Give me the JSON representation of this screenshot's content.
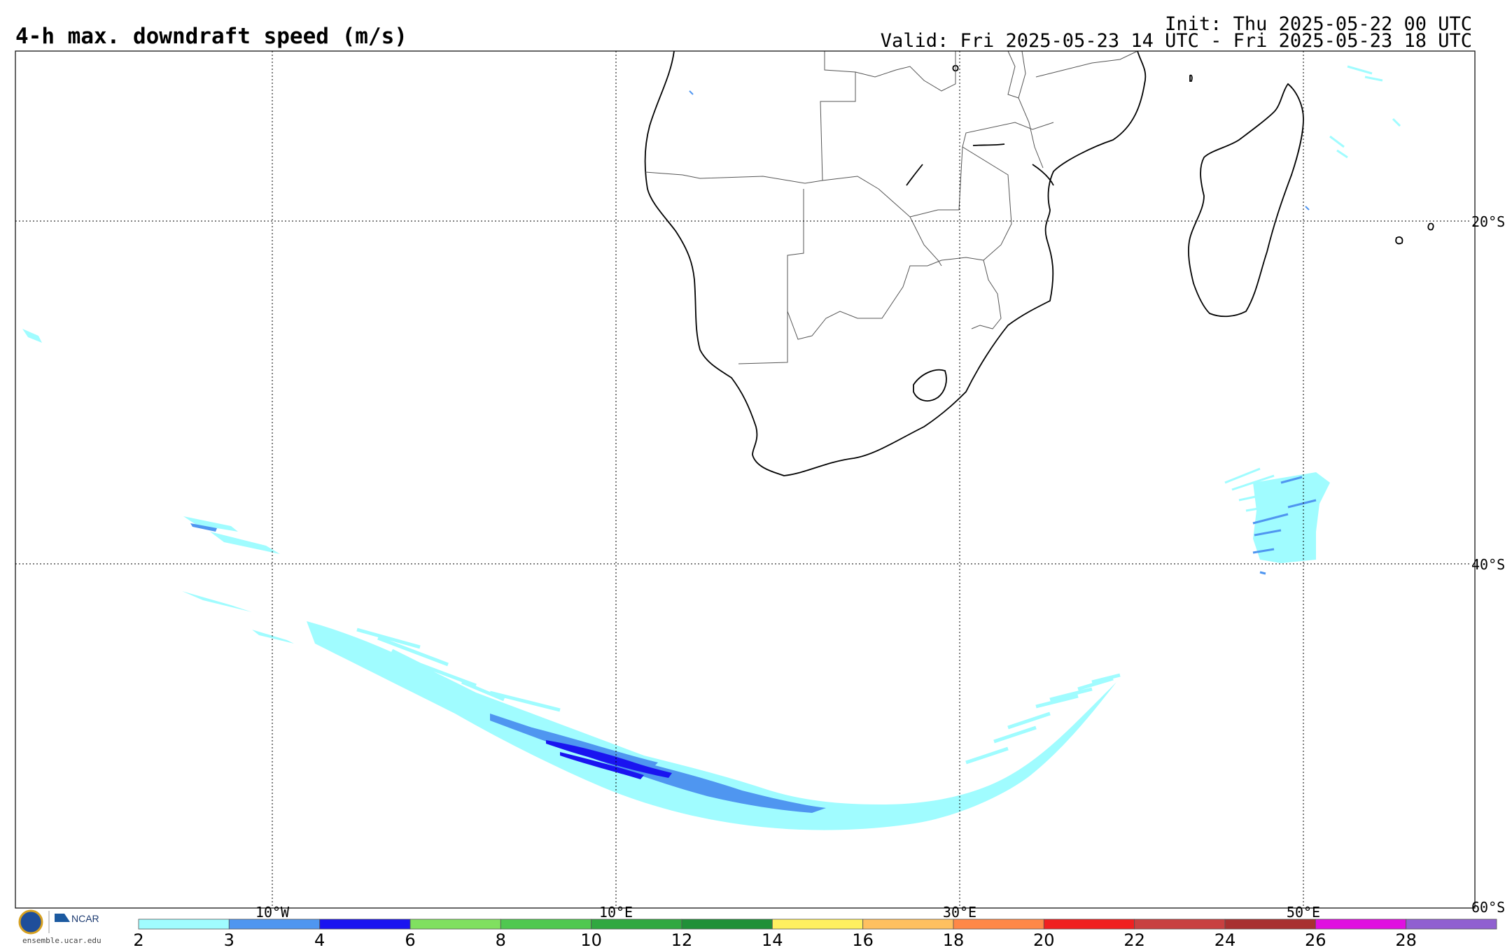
{
  "header": {
    "title": "4-h max. downdraft speed (m/s)",
    "init": "Init: Thu 2025-05-22 00 UTC",
    "valid": "Valid: Fri 2025-05-23 14 UTC - Fri 2025-05-23 18 UTC"
  },
  "map": {
    "lat_labels": [
      "20°S",
      "40°S",
      "60°S"
    ],
    "lon_labels": [
      "10°W",
      "10°E",
      "30°E",
      "50°E"
    ],
    "gridlines": "dotted"
  },
  "colorbar": {
    "ticks": [
      "2",
      "3",
      "4",
      "6",
      "8",
      "10",
      "12",
      "14",
      "16",
      "18",
      "20",
      "22",
      "24",
      "26",
      "28"
    ],
    "colors": [
      "#a0fcff",
      "#4f96f0",
      "#1a14f0",
      "#80e060",
      "#50c850",
      "#30a840",
      "#209038",
      "#fff060",
      "#ffc060",
      "#ff8848",
      "#f02020",
      "#c84040",
      "#a83030",
      "#e010e0",
      "#9060d0"
    ]
  },
  "branding": {
    "logos": [
      "nsf-logo",
      "ncar-logo"
    ],
    "ncar_text": "NCAR",
    "site": "ensemble.ucar.edu"
  },
  "field_colors": {
    "light": "#a0fcff",
    "mid": "#4f96f0",
    "dark": "#1a14f0"
  }
}
